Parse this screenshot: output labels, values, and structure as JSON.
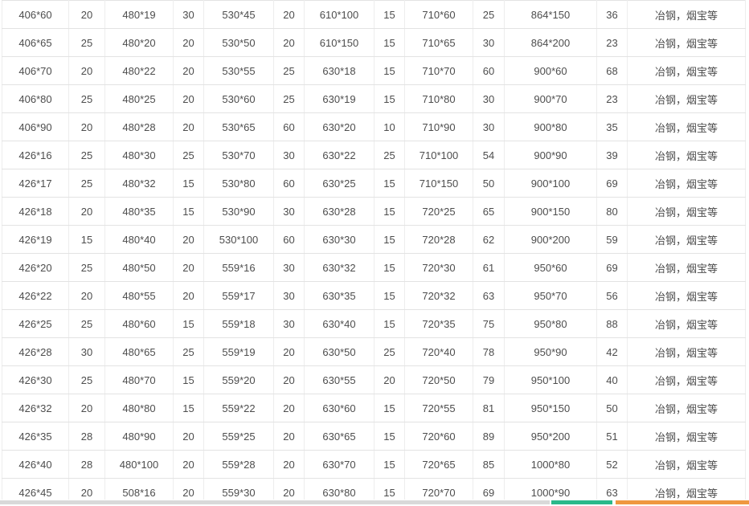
{
  "table": {
    "column_pattern": [
      "size",
      "qty",
      "size",
      "qty",
      "size",
      "qty",
      "size",
      "qty",
      "size",
      "qty",
      "size",
      "qty",
      "suppliers"
    ],
    "rows": [
      [
        "406*60",
        "20",
        "480*19",
        "30",
        "530*45",
        "20",
        "610*100",
        "15",
        "710*60",
        "25",
        "864*150",
        "36",
        "冶钢，烟宝等"
      ],
      [
        "406*65",
        "25",
        "480*20",
        "20",
        "530*50",
        "20",
        "610*150",
        "15",
        "710*65",
        "30",
        "864*200",
        "23",
        "冶钢，烟宝等"
      ],
      [
        "406*70",
        "20",
        "480*22",
        "20",
        "530*55",
        "25",
        "630*18",
        "15",
        "710*70",
        "60",
        "900*60",
        "68",
        "冶钢，烟宝等"
      ],
      [
        "406*80",
        "25",
        "480*25",
        "20",
        "530*60",
        "25",
        "630*19",
        "15",
        "710*80",
        "30",
        "900*70",
        "23",
        "冶钢，烟宝等"
      ],
      [
        "406*90",
        "20",
        "480*28",
        "20",
        "530*65",
        "60",
        "630*20",
        "10",
        "710*90",
        "30",
        "900*80",
        "35",
        "冶钢，烟宝等"
      ],
      [
        "426*16",
        "25",
        "480*30",
        "25",
        "530*70",
        "30",
        "630*22",
        "25",
        "710*100",
        "54",
        "900*90",
        "39",
        "冶钢，烟宝等"
      ],
      [
        "426*17",
        "25",
        "480*32",
        "15",
        "530*80",
        "60",
        "630*25",
        "15",
        "710*150",
        "50",
        "900*100",
        "69",
        "冶钢，烟宝等"
      ],
      [
        "426*18",
        "20",
        "480*35",
        "15",
        "530*90",
        "30",
        "630*28",
        "15",
        "720*25",
        "65",
        "900*150",
        "80",
        "冶钢，烟宝等"
      ],
      [
        "426*19",
        "15",
        "480*40",
        "20",
        "530*100",
        "60",
        "630*30",
        "15",
        "720*28",
        "62",
        "900*200",
        "59",
        "冶钢，烟宝等"
      ],
      [
        "426*20",
        "25",
        "480*50",
        "20",
        "559*16",
        "30",
        "630*32",
        "15",
        "720*30",
        "61",
        "950*60",
        "69",
        "冶钢，烟宝等"
      ],
      [
        "426*22",
        "20",
        "480*55",
        "20",
        "559*17",
        "30",
        "630*35",
        "15",
        "720*32",
        "63",
        "950*70",
        "56",
        "冶钢，烟宝等"
      ],
      [
        "426*25",
        "25",
        "480*60",
        "15",
        "559*18",
        "30",
        "630*40",
        "15",
        "720*35",
        "75",
        "950*80",
        "88",
        "冶钢，烟宝等"
      ],
      [
        "426*28",
        "30",
        "480*65",
        "25",
        "559*19",
        "20",
        "630*50",
        "25",
        "720*40",
        "78",
        "950*90",
        "42",
        "冶钢，烟宝等"
      ],
      [
        "426*30",
        "25",
        "480*70",
        "15",
        "559*20",
        "20",
        "630*55",
        "20",
        "720*50",
        "79",
        "950*100",
        "40",
        "冶钢，烟宝等"
      ],
      [
        "426*32",
        "20",
        "480*80",
        "15",
        "559*22",
        "20",
        "630*60",
        "15",
        "720*55",
        "81",
        "950*150",
        "50",
        "冶钢，烟宝等"
      ],
      [
        "426*35",
        "28",
        "480*90",
        "20",
        "559*25",
        "20",
        "630*65",
        "15",
        "720*60",
        "89",
        "950*200",
        "51",
        "冶钢，烟宝等"
      ],
      [
        "426*40",
        "28",
        "480*100",
        "20",
        "559*28",
        "20",
        "630*70",
        "15",
        "720*65",
        "85",
        "1000*80",
        "52",
        "冶钢，烟宝等"
      ],
      [
        "426*45",
        "20",
        "508*16",
        "20",
        "559*30",
        "20",
        "630*80",
        "15",
        "720*70",
        "69",
        "1000*90",
        "63",
        "冶钢，烟宝等"
      ]
    ]
  },
  "footer": {
    "segments": [
      {
        "name": "gray",
        "color": "#d9d9d9"
      },
      {
        "name": "teal",
        "color": "#2ab98a"
      },
      {
        "name": "orange",
        "color": "#ef9840"
      }
    ]
  }
}
